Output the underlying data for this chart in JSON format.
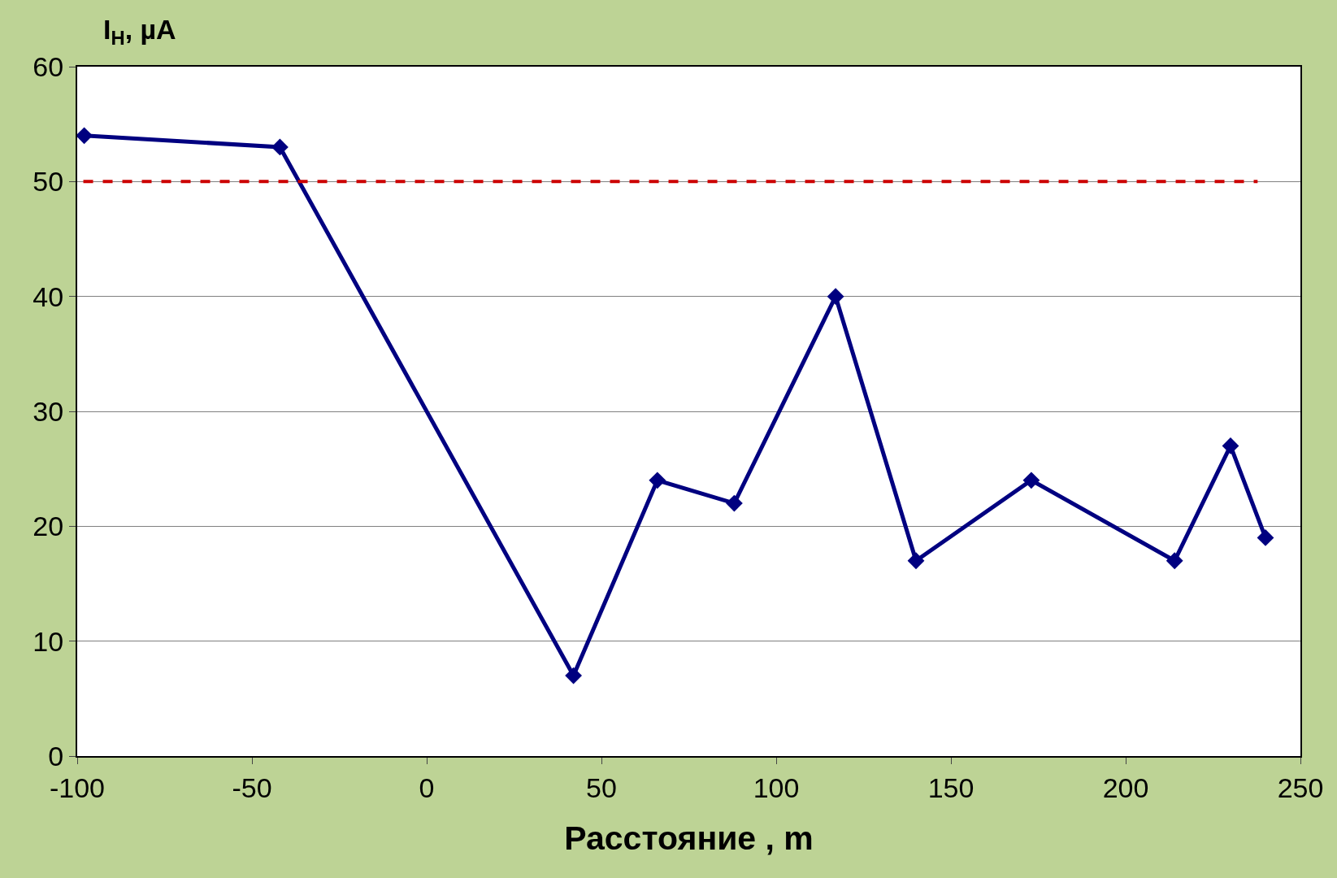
{
  "chart_data": {
    "type": "line",
    "ylabel": "I$_{Н}$, µA",
    "xlabel": "Расстояние , m",
    "x": [
      -98,
      -42,
      42,
      66,
      88,
      117,
      140,
      173,
      214,
      230,
      240
    ],
    "series": [
      {
        "color": "#000080",
        "values": [
          54,
          53,
          7,
          24,
          22,
          40,
          17,
          24,
          17,
          27,
          19
        ]
      }
    ],
    "xlim": [
      -100,
      250
    ],
    "xticks": [
      -100,
      -50,
      0,
      50,
      100,
      150,
      200,
      250
    ],
    "ylim": [
      0,
      60
    ],
    "yticks": [
      0,
      10,
      20,
      30,
      40,
      50,
      60
    ],
    "ref_lines": [
      {
        "axis": "y",
        "value": 50,
        "color": "#cc0000",
        "line_style": "dashed"
      }
    ],
    "grid": "y",
    "legend": false,
    "marker": "diamond",
    "line_style": "solid"
  }
}
